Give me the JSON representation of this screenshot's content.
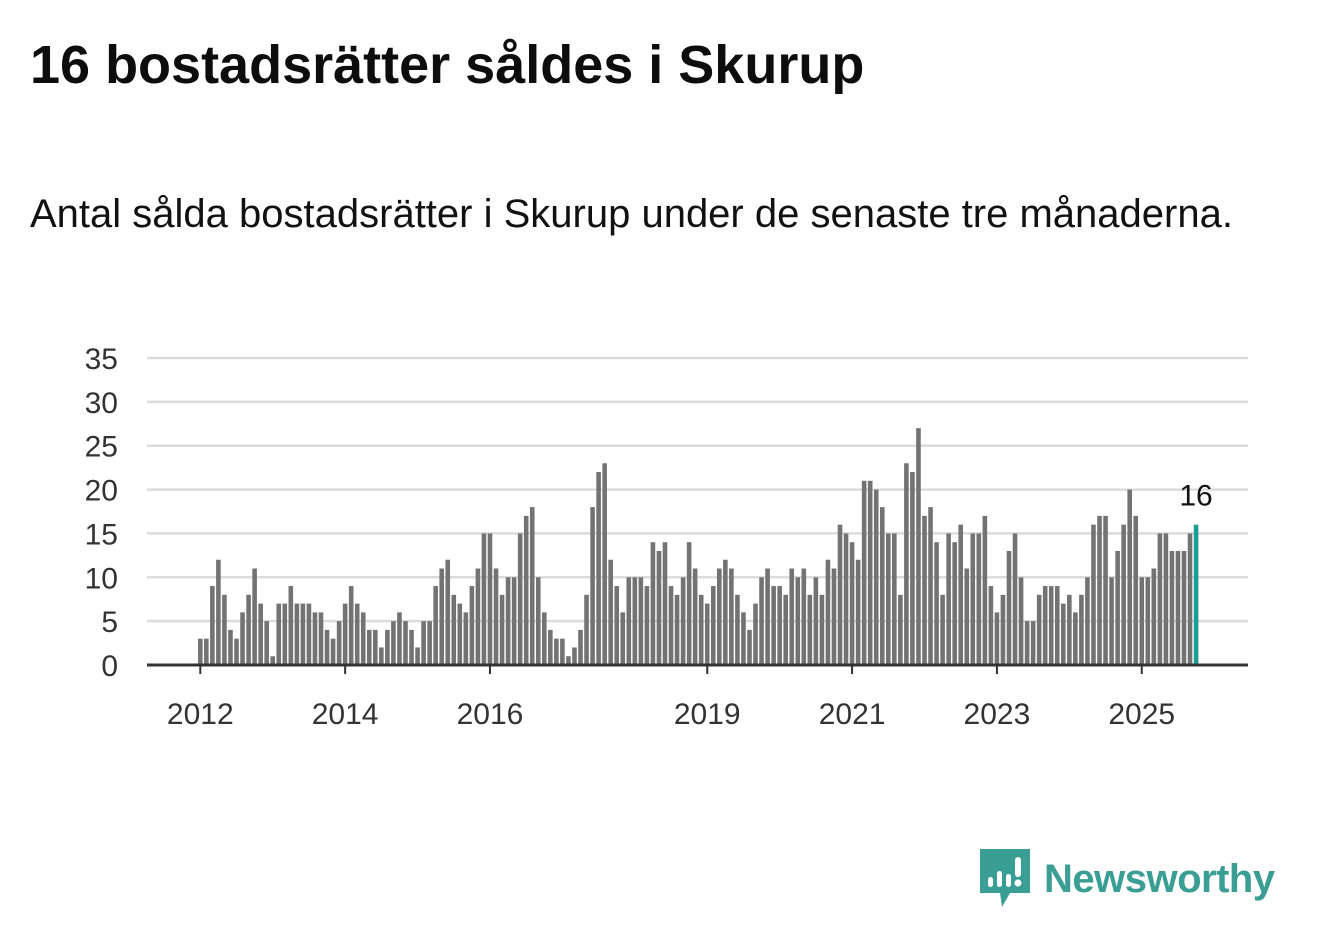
{
  "title": "16 bostadsrätter såldes i Skurup",
  "subtitle": "Antal sålda bostadsrätter i Skurup under de senaste tre månaderna.",
  "brand": {
    "name": "Newsworthy",
    "icon": "newsworthy-logo-icon",
    "color": "#3a9e95"
  },
  "chart_data": {
    "type": "bar",
    "title": "16 bostadsrätter såldes i Skurup",
    "subtitle": "Antal sålda bostadsrätter i Skurup under de senaste tre månaderna.",
    "xlabel": "",
    "ylabel": "",
    "ylim": [
      0,
      35
    ],
    "yticks": [
      0,
      5,
      10,
      15,
      20,
      25,
      30,
      35
    ],
    "xticks": [
      {
        "label": "2012",
        "index": 0
      },
      {
        "label": "2014",
        "index": 24
      },
      {
        "label": "2016",
        "index": 48
      },
      {
        "label": "2019",
        "index": 84
      },
      {
        "label": "2021",
        "index": 108
      },
      {
        "label": "2023",
        "index": 132
      },
      {
        "label": "2025",
        "index": 156
      }
    ],
    "grid": true,
    "colors": {
      "bars": "#737373",
      "highlight": "#1a9e93",
      "grid": "#dcdcdc",
      "axis": "#333333"
    },
    "highlight_label": "16",
    "values": [
      3,
      3,
      9,
      12,
      8,
      4,
      3,
      6,
      8,
      11,
      7,
      5,
      1,
      7,
      7,
      9,
      7,
      7,
      7,
      6,
      6,
      4,
      3,
      5,
      7,
      9,
      7,
      6,
      4,
      4,
      2,
      4,
      5,
      6,
      5,
      4,
      2,
      5,
      5,
      9,
      11,
      12,
      8,
      7,
      6,
      9,
      11,
      15,
      15,
      11,
      8,
      10,
      10,
      15,
      17,
      18,
      10,
      6,
      4,
      3,
      3,
      1,
      2,
      4,
      8,
      18,
      22,
      23,
      12,
      9,
      6,
      10,
      10,
      10,
      9,
      14,
      13,
      14,
      9,
      8,
      10,
      14,
      11,
      8,
      7,
      9,
      11,
      12,
      11,
      8,
      6,
      4,
      7,
      10,
      11,
      9,
      9,
      8,
      11,
      10,
      11,
      8,
      10,
      8,
      12,
      11,
      16,
      15,
      14,
      12,
      21,
      21,
      20,
      18,
      15,
      15,
      8,
      23,
      22,
      27,
      17,
      18,
      14,
      8,
      15,
      14,
      16,
      11,
      15,
      15,
      17,
      9,
      6,
      8,
      13,
      15,
      10,
      5,
      5,
      8,
      9,
      9,
      9,
      7,
      8,
      6,
      8,
      10,
      16,
      17,
      17,
      10,
      13,
      16,
      20,
      17,
      10,
      10,
      11,
      15,
      15,
      13,
      13,
      13,
      15,
      16
    ]
  }
}
